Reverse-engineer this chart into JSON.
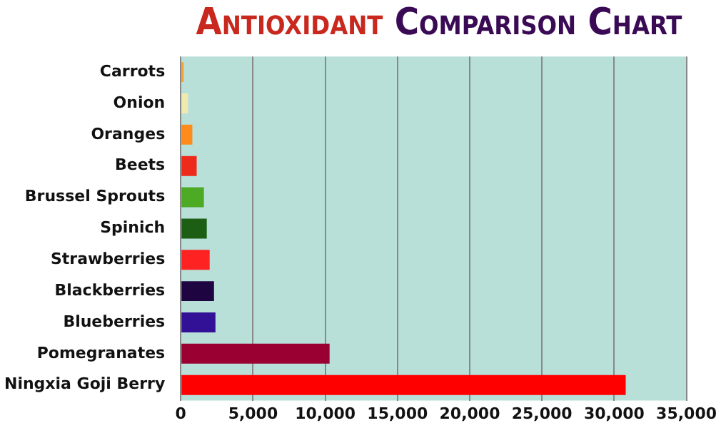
{
  "chart_data": {
    "type": "bar",
    "title": "Antioxidant Comparison Chart",
    "orientation": "horizontal",
    "categories": [
      "Carrots",
      "Onion",
      "Oranges",
      "Beets",
      "Brussel Sprouts",
      "Spinich",
      "Strawberries",
      "Blackberries",
      "Blueberries",
      "Pomegranates",
      "Ningxia Goji Berry"
    ],
    "values": [
      200,
      500,
      800,
      1100,
      1600,
      1800,
      2000,
      2300,
      2400,
      10300,
      30800
    ],
    "colors": [
      "#f7a234",
      "#f1eab0",
      "#ff8c1a",
      "#ee2a1a",
      "#4caa25",
      "#1d5e15",
      "#ff2222",
      "#1e0542",
      "#331197",
      "#9a0032",
      "#ff0000"
    ],
    "xlim": [
      0,
      35000
    ],
    "xticks": [
      0,
      {
        "value": 5000,
        "label": "5,000"
      },
      {
        "value": 10000,
        "label": "10,000"
      },
      {
        "value": 15000,
        "label": "15,000"
      },
      {
        "value": 20000,
        "label": "20,000"
      },
      {
        "value": 25000,
        "label": "25,000"
      },
      {
        "value": 30000,
        "label": "30,000"
      },
      {
        "value": 35000,
        "label": "35,000"
      }
    ],
    "grid": "x"
  }
}
